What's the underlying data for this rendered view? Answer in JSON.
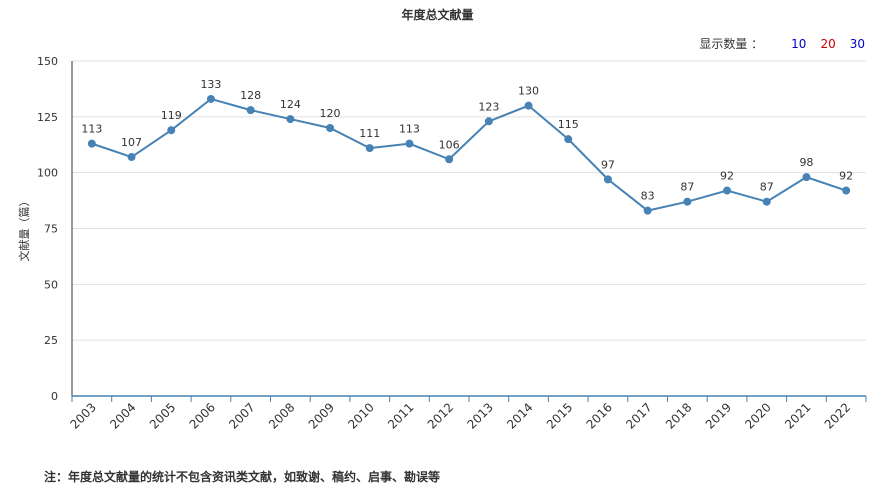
{
  "header": {
    "title": "年度总文献量"
  },
  "count_selector": {
    "label": "显示数量 ：",
    "options": [
      {
        "label": "10",
        "color": "#0000cc"
      },
      {
        "label": "20",
        "color": "#cc0000"
      },
      {
        "label": "30",
        "color": "#0000cc"
      }
    ]
  },
  "footer": {
    "note": "注：年度总文献量的统计不包含资讯类文献，如致谢、稿约、启事、勘误等"
  },
  "chart_data": {
    "type": "line",
    "title": "年度总文献量",
    "ylabel": "文献量（篇）",
    "xlabel": "",
    "ylim": [
      0,
      150
    ],
    "yticks": [
      0,
      25,
      50,
      75,
      100,
      125,
      150
    ],
    "grid": true,
    "line_color": "#4682b4",
    "categories": [
      "2003",
      "2004",
      "2005",
      "2006",
      "2007",
      "2008",
      "2009",
      "2010",
      "2011",
      "2012",
      "2013",
      "2014",
      "2015",
      "2016",
      "2017",
      "2018",
      "2019",
      "2020",
      "2021",
      "2022"
    ],
    "values": [
      113,
      107,
      119,
      133,
      128,
      124,
      120,
      111,
      113,
      106,
      123,
      130,
      115,
      97,
      83,
      87,
      92,
      87,
      98,
      92
    ]
  }
}
